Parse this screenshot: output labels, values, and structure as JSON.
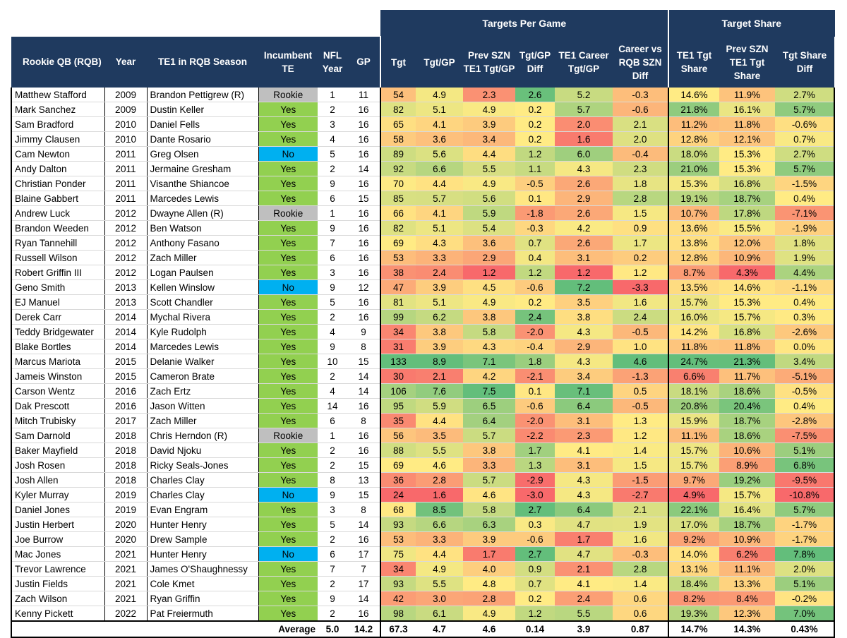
{
  "group_headers": {
    "tpg": "Targets Per Game",
    "ts": "Target Share"
  },
  "headers": {
    "qb": "Rookie QB (RQB)",
    "year": "Year",
    "te": "TE1 in RQB Season",
    "inc": "Incumbent TE",
    "nfl": "NFL Year",
    "gp": "GP",
    "tgt": "Tgt",
    "tgtgp": "Tgt/GP",
    "prev": "Prev SZN TE1 Tgt/GP",
    "diff": "Tgt/GP Diff",
    "career": "TE1 Career Tgt/GP",
    "cvr": "Career vs RQB SZN Diff",
    "share": "TE1 Tgt Share",
    "prevshare": "Prev SZN TE1 Tgt Share",
    "sharediff": "Tgt Share Diff"
  },
  "rows": [
    [
      "Matthew Stafford",
      "2009",
      "Brandon Pettigrew (R)",
      "Rookie",
      "1",
      "11",
      "54",
      "4.9",
      "2.3",
      "2.6",
      "5.2",
      "-0.3",
      "14.6%",
      "11.9%",
      "2.7%"
    ],
    [
      "Mark Sanchez",
      "2009",
      "Dustin Keller",
      "Yes",
      "2",
      "16",
      "82",
      "5.1",
      "4.9",
      "0.2",
      "5.7",
      "-0.6",
      "21.8%",
      "16.1%",
      "5.7%"
    ],
    [
      "Sam Bradford",
      "2010",
      "Daniel Fells",
      "Yes",
      "3",
      "16",
      "65",
      "4.1",
      "3.9",
      "0.2",
      "2.0",
      "2.1",
      "11.2%",
      "11.8%",
      "-0.6%"
    ],
    [
      "Jimmy Clausen",
      "2010",
      "Dante Rosario",
      "Yes",
      "4",
      "16",
      "58",
      "3.6",
      "3.4",
      "0.2",
      "1.6",
      "2.0",
      "12.8%",
      "12.1%",
      "0.7%"
    ],
    [
      "Cam Newton",
      "2011",
      "Greg Olsen",
      "No",
      "5",
      "16",
      "89",
      "5.6",
      "4.4",
      "1.2",
      "6.0",
      "-0.4",
      "18.0%",
      "15.3%",
      "2.7%"
    ],
    [
      "Andy Dalton",
      "2011",
      "Jermaine Gresham",
      "Yes",
      "2",
      "14",
      "92",
      "6.6",
      "5.5",
      "1.1",
      "4.3",
      "2.3",
      "21.0%",
      "15.3%",
      "5.7%"
    ],
    [
      "Christian Ponder",
      "2011",
      "Visanthe Shiancoe",
      "Yes",
      "9",
      "16",
      "70",
      "4.4",
      "4.9",
      "-0.5",
      "2.6",
      "1.8",
      "15.3%",
      "16.8%",
      "-1.5%"
    ],
    [
      "Blaine Gabbert",
      "2011",
      "Marcedes Lewis",
      "Yes",
      "6",
      "15",
      "85",
      "5.7",
      "5.6",
      "0.1",
      "2.9",
      "2.8",
      "19.1%",
      "18.7%",
      "0.4%"
    ],
    [
      "Andrew Luck",
      "2012",
      "Dwayne Allen (R)",
      "Rookie",
      "1",
      "16",
      "66",
      "4.1",
      "5.9",
      "-1.8",
      "2.6",
      "1.5",
      "10.7%",
      "17.8%",
      "-7.1%"
    ],
    [
      "Brandon Weeden",
      "2012",
      "Ben Watson",
      "Yes",
      "9",
      "16",
      "82",
      "5.1",
      "5.4",
      "-0.3",
      "4.2",
      "0.9",
      "13.6%",
      "15.5%",
      "-1.9%"
    ],
    [
      "Ryan Tannehill",
      "2012",
      "Anthony Fasano",
      "Yes",
      "7",
      "16",
      "69",
      "4.3",
      "3.6",
      "0.7",
      "2.6",
      "1.7",
      "13.8%",
      "12.0%",
      "1.8%"
    ],
    [
      "Russell Wilson",
      "2012",
      "Zach Miller",
      "Yes",
      "6",
      "16",
      "53",
      "3.3",
      "2.9",
      "0.4",
      "3.1",
      "0.2",
      "12.8%",
      "10.9%",
      "1.9%"
    ],
    [
      "Robert Griffin III",
      "2012",
      "Logan Paulsen",
      "Yes",
      "3",
      "16",
      "38",
      "2.4",
      "1.2",
      "1.2",
      "1.2",
      "1.2",
      "8.7%",
      "4.3%",
      "4.4%"
    ],
    [
      "Geno Smith",
      "2013",
      "Kellen Winslow",
      "No",
      "9",
      "12",
      "47",
      "3.9",
      "4.5",
      "-0.6",
      "7.2",
      "-3.3",
      "13.5%",
      "14.6%",
      "-1.1%"
    ],
    [
      "EJ Manuel",
      "2013",
      "Scott Chandler",
      "Yes",
      "5",
      "16",
      "81",
      "5.1",
      "4.9",
      "0.2",
      "3.5",
      "1.6",
      "15.7%",
      "15.3%",
      "0.4%"
    ],
    [
      "Derek Carr",
      "2014",
      "Mychal Rivera",
      "Yes",
      "2",
      "16",
      "99",
      "6.2",
      "3.8",
      "2.4",
      "3.8",
      "2.4",
      "16.0%",
      "15.7%",
      "0.3%"
    ],
    [
      "Teddy Bridgewater",
      "2014",
      "Kyle Rudolph",
      "Yes",
      "4",
      "9",
      "34",
      "3.8",
      "5.8",
      "-2.0",
      "4.3",
      "-0.5",
      "14.2%",
      "16.8%",
      "-2.6%"
    ],
    [
      "Blake Bortles",
      "2014",
      "Marcedes Lewis",
      "Yes",
      "9",
      "8",
      "31",
      "3.9",
      "4.3",
      "-0.4",
      "2.9",
      "1.0",
      "11.8%",
      "11.8%",
      "0.0%"
    ],
    [
      "Marcus Mariota",
      "2015",
      "Delanie Walker",
      "Yes",
      "10",
      "15",
      "133",
      "8.9",
      "7.1",
      "1.8",
      "4.3",
      "4.6",
      "24.7%",
      "21.3%",
      "3.4%"
    ],
    [
      "Jameis Winston",
      "2015",
      "Cameron Brate",
      "Yes",
      "2",
      "14",
      "30",
      "2.1",
      "4.2",
      "-2.1",
      "3.4",
      "-1.3",
      "6.6%",
      "11.7%",
      "-5.1%"
    ],
    [
      "Carson Wentz",
      "2016",
      "Zach Ertz",
      "Yes",
      "4",
      "14",
      "106",
      "7.6",
      "7.5",
      "0.1",
      "7.1",
      "0.5",
      "18.1%",
      "18.6%",
      "-0.5%"
    ],
    [
      "Dak Prescott",
      "2016",
      "Jason Witten",
      "Yes",
      "14",
      "16",
      "95",
      "5.9",
      "6.5",
      "-0.6",
      "6.4",
      "-0.5",
      "20.8%",
      "20.4%",
      "0.4%"
    ],
    [
      "Mitch Trubisky",
      "2017",
      "Zach Miller",
      "Yes",
      "6",
      "8",
      "35",
      "4.4",
      "6.4",
      "-2.0",
      "3.1",
      "1.3",
      "15.9%",
      "18.7%",
      "-2.8%"
    ],
    [
      "Sam Darnold",
      "2018",
      "Chris Herndon (R)",
      "Rookie",
      "1",
      "16",
      "56",
      "3.5",
      "5.7",
      "-2.2",
      "2.3",
      "1.2",
      "11.1%",
      "18.6%",
      "-7.5%"
    ],
    [
      "Baker Mayfield",
      "2018",
      "David Njoku",
      "Yes",
      "2",
      "16",
      "88",
      "5.5",
      "3.8",
      "1.7",
      "4.1",
      "1.4",
      "15.7%",
      "10.6%",
      "5.1%"
    ],
    [
      "Josh Rosen",
      "2018",
      "Ricky Seals-Jones",
      "Yes",
      "2",
      "15",
      "69",
      "4.6",
      "3.3",
      "1.3",
      "3.1",
      "1.5",
      "15.7%",
      "8.9%",
      "6.8%"
    ],
    [
      "Josh Allen",
      "2018",
      "Charles Clay",
      "Yes",
      "8",
      "13",
      "36",
      "2.8",
      "5.7",
      "-2.9",
      "4.3",
      "-1.5",
      "9.7%",
      "19.2%",
      "-9.5%"
    ],
    [
      "Kyler Murray",
      "2019",
      "Charles Clay",
      "No",
      "9",
      "15",
      "24",
      "1.6",
      "4.6",
      "-3.0",
      "4.3",
      "-2.7",
      "4.9%",
      "15.7%",
      "-10.8%"
    ],
    [
      "Daniel Jones",
      "2019",
      "Evan Engram",
      "Yes",
      "3",
      "8",
      "68",
      "8.5",
      "5.8",
      "2.7",
      "6.4",
      "2.1",
      "22.1%",
      "16.4%",
      "5.7%"
    ],
    [
      "Justin Herbert",
      "2020",
      "Hunter Henry",
      "Yes",
      "5",
      "14",
      "93",
      "6.6",
      "6.3",
      "0.3",
      "4.7",
      "1.9",
      "17.0%",
      "18.7%",
      "-1.7%"
    ],
    [
      "Joe Burrow",
      "2020",
      "Drew Sample",
      "Yes",
      "2",
      "16",
      "53",
      "3.3",
      "3.9",
      "-0.6",
      "1.7",
      "1.6",
      "9.2%",
      "10.9%",
      "-1.7%"
    ],
    [
      "Mac Jones",
      "2021",
      "Hunter Henry",
      "No",
      "6",
      "17",
      "75",
      "4.4",
      "1.7",
      "2.7",
      "4.7",
      "-0.3",
      "14.0%",
      "6.2%",
      "7.8%"
    ],
    [
      "Trevor Lawrence",
      "2021",
      "James O'Shaughnessy",
      "Yes",
      "7",
      "7",
      "34",
      "4.9",
      "4.0",
      "0.9",
      "2.1",
      "2.8",
      "13.1%",
      "11.1%",
      "2.0%"
    ],
    [
      "Justin Fields",
      "2021",
      "Cole Kmet",
      "Yes",
      "2",
      "17",
      "93",
      "5.5",
      "4.8",
      "0.7",
      "4.1",
      "1.4",
      "18.4%",
      "13.3%",
      "5.1%"
    ],
    [
      "Zach Wilson",
      "2021",
      "Ryan Griffin",
      "Yes",
      "9",
      "14",
      "42",
      "3.0",
      "2.8",
      "0.2",
      "2.4",
      "0.6",
      "8.2%",
      "8.4%",
      "-0.2%"
    ],
    [
      "Kenny Pickett",
      "2022",
      "Pat Freiermuth",
      "Yes",
      "2",
      "16",
      "98",
      "6.1",
      "4.9",
      "1.2",
      "5.5",
      "0.6",
      "19.3%",
      "12.3%",
      "7.0%"
    ]
  ],
  "average": {
    "label": "Average",
    "nfl": "5.0",
    "gp": "14.2",
    "tgt": "67.3",
    "tgtgp": "4.7",
    "prev": "4.6",
    "diff": "0.14",
    "career": "3.9",
    "cvr": "0.87",
    "share": "14.7%",
    "prevshare": "14.3%",
    "sharediff": "0.43%"
  },
  "colors": {
    "header_bg": "#1f3a5f",
    "yes": "#92d050",
    "no": "#00b0f0",
    "rookie": "#bfbfbf",
    "scale_low": "#f8696b",
    "scale_mid": "#ffeb84",
    "scale_high": "#63be7b"
  }
}
